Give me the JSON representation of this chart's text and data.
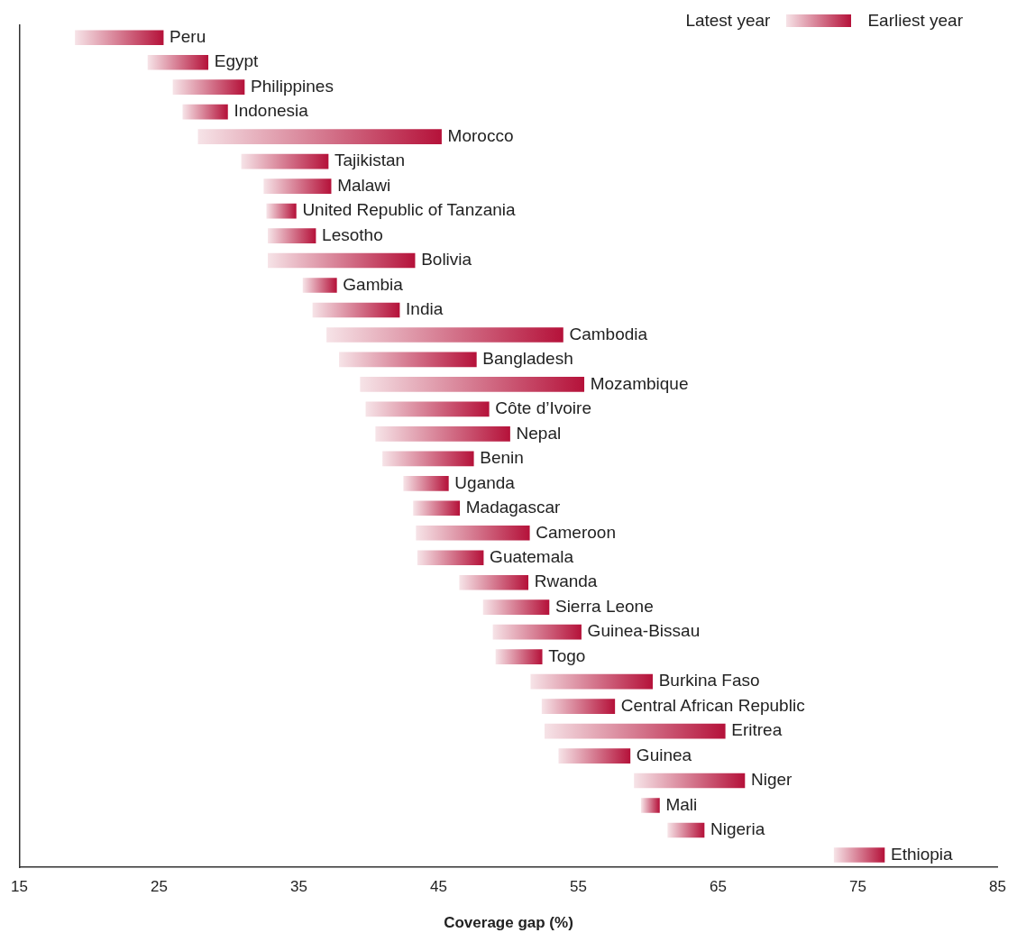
{
  "chart_data": {
    "type": "bar",
    "orientation": "horizontal",
    "xlabel": "Coverage gap (%)",
    "categories": [
      "Peru",
      "Egypt",
      "Philippines",
      "Indonesia",
      "Morocco",
      "Tajikistan",
      "Malawi",
      "United Republic of Tanzania",
      "Lesotho",
      "Bolivia",
      "Gambia",
      "India",
      "Cambodia",
      "Bangladesh",
      "Mozambique",
      "Côte d’Ivoire",
      "Nepal",
      "Benin",
      "Uganda",
      "Madagascar",
      "Cameroon",
      "Guatemala",
      "Rwanda",
      "Sierra Leone",
      "Guinea-Bissau",
      "Togo",
      "Burkina Faso",
      "Central African Republic",
      "Eritrea",
      "Guinea",
      "Niger",
      "Mali",
      "Nigeria",
      "Ethiopia"
    ],
    "base": [
      19.0,
      24.2,
      26.0,
      26.7,
      27.8,
      30.9,
      32.5,
      32.7,
      32.8,
      32.8,
      35.3,
      36.0,
      37.0,
      37.9,
      39.4,
      39.8,
      40.5,
      41.0,
      42.5,
      43.2,
      43.4,
      43.5,
      46.5,
      48.2,
      48.9,
      49.1,
      51.6,
      52.4,
      52.6,
      53.6,
      59.0,
      59.5,
      61.4,
      73.3
    ],
    "values": [
      6.3,
      4.3,
      5.1,
      3.2,
      17.4,
      6.2,
      4.8,
      2.1,
      3.4,
      10.5,
      2.4,
      6.2,
      16.9,
      9.8,
      16.0,
      8.8,
      9.6,
      6.5,
      3.2,
      3.3,
      8.1,
      4.7,
      4.9,
      4.7,
      6.3,
      3.3,
      8.7,
      5.2,
      12.9,
      5.1,
      7.9,
      1.3,
      2.6,
      3.6
    ],
    "color": "#b5123a",
    "xlim": [
      15,
      85
    ],
    "xticks": [
      15,
      25,
      35,
      45,
      55,
      65,
      75,
      85
    ],
    "tick_labels": "x",
    "grid": false,
    "annotations": [
      "Latest year",
      "Earliest year"
    ]
  }
}
